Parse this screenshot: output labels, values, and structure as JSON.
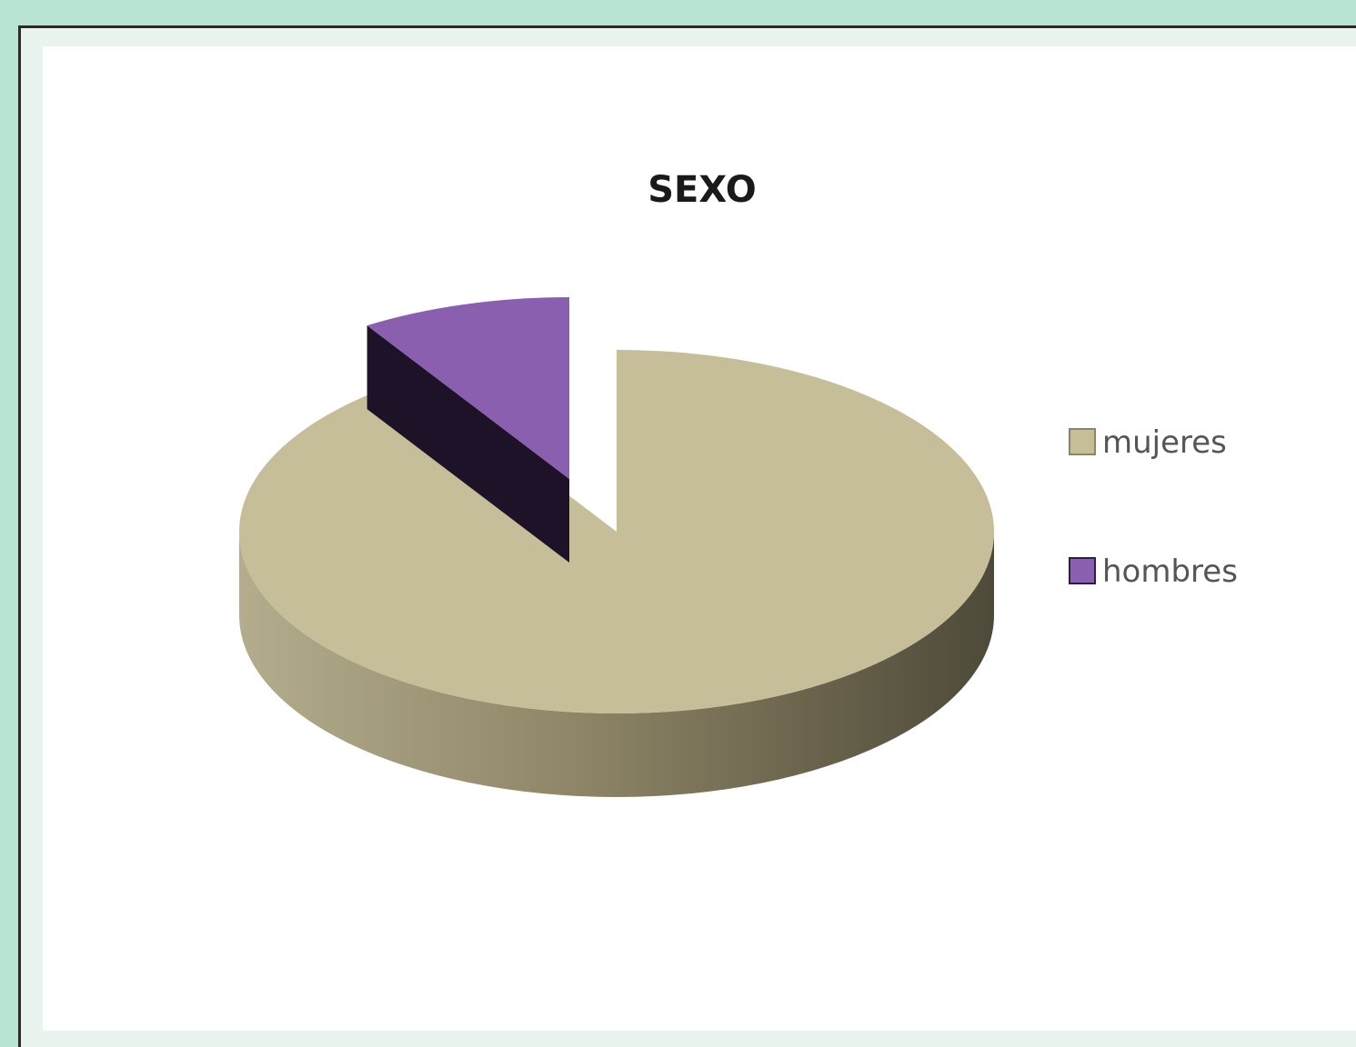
{
  "chart_data": {
    "type": "pie",
    "title": "SEXO",
    "categories": [
      "mujeres",
      "hombres"
    ],
    "values": [
      91,
      9
    ],
    "colors": [
      "#c6bd99",
      "#8a5fb0"
    ],
    "side_colors": [
      "#8c8466",
      "#2e1c44"
    ],
    "legend": "right",
    "style": "3d-exploded"
  }
}
